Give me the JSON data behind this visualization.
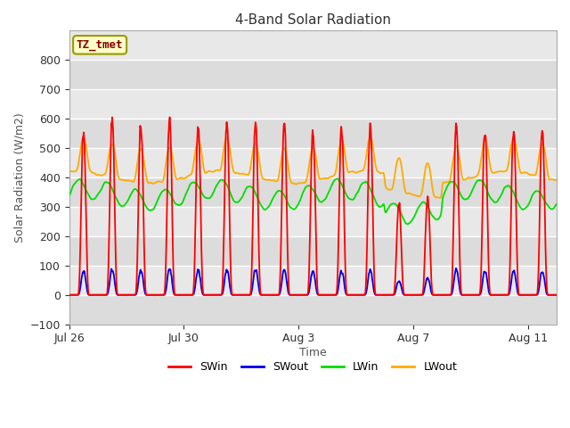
{
  "title": "4-Band Solar Radiation",
  "xlabel": "Time",
  "ylabel": "Solar Radiation (W/m2)",
  "legend_label": "TZ_tmet",
  "series_labels": [
    "SWin",
    "SWout",
    "LWin",
    "LWout"
  ],
  "series_colors": [
    "#ff0000",
    "#0000ee",
    "#00dd00",
    "#ffaa00"
  ],
  "ylim": [
    -100,
    900
  ],
  "yticks": [
    -100,
    0,
    100,
    200,
    300,
    400,
    500,
    600,
    700,
    800
  ],
  "n_days": 17,
  "fig_bg_color": "#ffffff",
  "plot_bg_color": "#e8e8e8",
  "band_colors": [
    "#dcdcdc",
    "#e8e8e8"
  ],
  "grid_line_color": "#ffffff",
  "legend_box_facecolor": "#ffffc8",
  "legend_box_edgecolor": "#999900",
  "legend_text_color": "#880000",
  "line_width": 1.3,
  "points_per_day": 144
}
